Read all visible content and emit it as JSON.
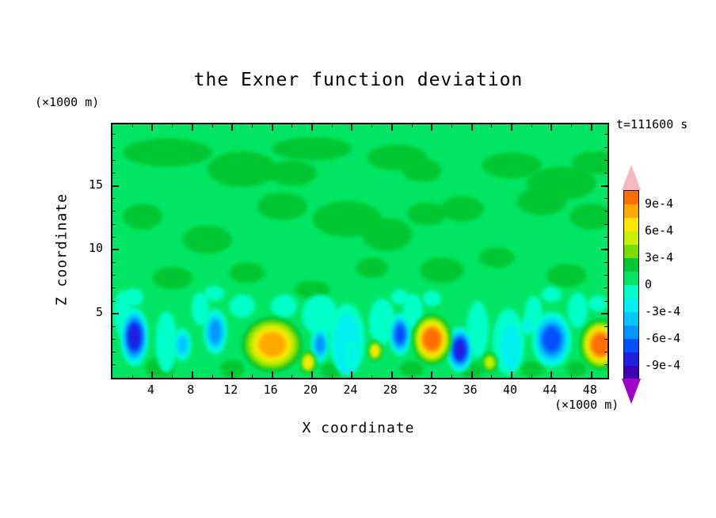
{
  "labels": {
    "title": "the Exner function deviation",
    "time": "t=111600 s",
    "y_unit": "(×1000 m)",
    "x_unit": "(×1000 m)",
    "xlabel": "X coordinate",
    "ylabel": "Z coordinate"
  },
  "chart_data": {
    "type": "filled_contour",
    "title": "the Exner function deviation",
    "xlabel": "X coordinate",
    "ylabel": "Z coordinate",
    "x_unit": "×1000 m",
    "y_unit": "×1000 m",
    "time_label": "t=111600 s",
    "x_range": [
      0,
      49.6
    ],
    "y_range": [
      0,
      19.8
    ],
    "x_ticks_major": [
      4,
      8,
      12,
      16,
      20,
      24,
      28,
      32,
      36,
      40,
      44,
      48
    ],
    "x_ticks_minor": [
      2,
      6,
      10,
      14,
      18,
      22,
      26,
      30,
      34,
      38,
      42,
      46
    ],
    "y_ticks_major": [
      5,
      10,
      15
    ],
    "y_ticks_minor": [
      1,
      2,
      3,
      4,
      6,
      7,
      8,
      9,
      11,
      12,
      13,
      14,
      16,
      17,
      18,
      19
    ],
    "contour_interval": 0.00015,
    "levels": [
      -0.0009,
      -0.00075,
      -0.0006,
      -0.00045,
      -0.0003,
      -0.00015,
      0,
      0.00015,
      0.0003,
      0.00045,
      0.0006,
      0.00075,
      0.0009
    ],
    "colorbar": {
      "cells": [
        "#3C00B4",
        "#2020E0",
        "#0050FF",
        "#0096FF",
        "#00C8FF",
        "#00F0F0",
        "#00FFC8",
        "#00E664",
        "#00C832",
        "#78DC00",
        "#C8F000",
        "#FFE600",
        "#FFAA00",
        "#FF6E00"
      ],
      "over_color": "#F5B8C3",
      "under_color": "#A000C8",
      "labels": [
        {
          "text": "9e-4",
          "boundary": 13
        },
        {
          "text": "6e-4",
          "boundary": 11
        },
        {
          "text": "3e-4",
          "boundary": 9
        },
        {
          "text": "0",
          "boundary": 7
        },
        {
          "text": "-3e-4",
          "boundary": 5
        },
        {
          "text": "-6e-4",
          "boundary": 3
        },
        {
          "text": "-9e-4",
          "boundary": 1
        }
      ]
    },
    "field": {
      "background_level": 7,
      "patches": [
        {
          "x": 5.5,
          "z": 17.6,
          "rx": 4.5,
          "rz": 1.1,
          "level": 8
        },
        {
          "x": 13.0,
          "z": 16.3,
          "rx": 3.5,
          "rz": 1.4,
          "level": 8
        },
        {
          "x": 18.0,
          "z": 16.0,
          "rx": 2.5,
          "rz": 1.0,
          "level": 8
        },
        {
          "x": 20.0,
          "z": 17.9,
          "rx": 4.0,
          "rz": 0.9,
          "level": 8
        },
        {
          "x": 28.5,
          "z": 17.2,
          "rx": 3.0,
          "rz": 1.0,
          "level": 8
        },
        {
          "x": 31.0,
          "z": 16.2,
          "rx": 2.0,
          "rz": 0.9,
          "level": 8
        },
        {
          "x": 40.0,
          "z": 16.6,
          "rx": 3.0,
          "rz": 1.0,
          "level": 8
        },
        {
          "x": 45.0,
          "z": 15.2,
          "rx": 3.5,
          "rz": 1.3,
          "level": 8
        },
        {
          "x": 48.5,
          "z": 16.8,
          "rx": 2.5,
          "rz": 0.9,
          "level": 8
        },
        {
          "x": 3.0,
          "z": 12.6,
          "rx": 2.0,
          "rz": 1.0,
          "level": 8
        },
        {
          "x": 9.5,
          "z": 10.8,
          "rx": 2.5,
          "rz": 1.1,
          "level": 8
        },
        {
          "x": 17.0,
          "z": 13.4,
          "rx": 2.5,
          "rz": 1.1,
          "level": 8
        },
        {
          "x": 23.5,
          "z": 12.4,
          "rx": 3.5,
          "rz": 1.4,
          "level": 8
        },
        {
          "x": 27.5,
          "z": 11.2,
          "rx": 2.5,
          "rz": 1.3,
          "level": 8
        },
        {
          "x": 31.5,
          "z": 12.8,
          "rx": 2.0,
          "rz": 0.9,
          "level": 8
        },
        {
          "x": 35.0,
          "z": 13.2,
          "rx": 2.2,
          "rz": 1.0,
          "level": 8
        },
        {
          "x": 43.0,
          "z": 13.8,
          "rx": 2.5,
          "rz": 1.1,
          "level": 8
        },
        {
          "x": 48.0,
          "z": 12.6,
          "rx": 2.2,
          "rz": 1.0,
          "level": 8
        },
        {
          "x": 6.0,
          "z": 7.8,
          "rx": 2.0,
          "rz": 0.9,
          "level": 8
        },
        {
          "x": 13.5,
          "z": 8.2,
          "rx": 1.8,
          "rz": 0.8,
          "level": 8
        },
        {
          "x": 20.0,
          "z": 6.9,
          "rx": 1.8,
          "rz": 0.7,
          "level": 8
        },
        {
          "x": 26.0,
          "z": 8.6,
          "rx": 1.6,
          "rz": 0.8,
          "level": 8
        },
        {
          "x": 33.0,
          "z": 8.4,
          "rx": 2.2,
          "rz": 1.0,
          "level": 8
        },
        {
          "x": 38.5,
          "z": 9.4,
          "rx": 1.8,
          "rz": 0.8,
          "level": 8
        },
        {
          "x": 45.5,
          "z": 8.0,
          "rx": 2.0,
          "rz": 0.9,
          "level": 8
        },
        {
          "x": 4.8,
          "z": 0.8,
          "rx": 1.5,
          "rz": 0.8,
          "level": 8
        },
        {
          "x": 12.0,
          "z": 0.7,
          "rx": 1.2,
          "rz": 0.7,
          "level": 8
        },
        {
          "x": 22.0,
          "z": 0.6,
          "rx": 1.2,
          "rz": 0.6,
          "level": 8
        },
        {
          "x": 30.0,
          "z": 0.7,
          "rx": 1.2,
          "rz": 0.6,
          "level": 8
        },
        {
          "x": 36.0,
          "z": 0.6,
          "rx": 1.2,
          "rz": 0.6,
          "level": 8
        },
        {
          "x": 42.0,
          "z": 0.7,
          "rx": 1.2,
          "rz": 0.6,
          "level": 8
        },
        {
          "x": 46.5,
          "z": 0.7,
          "rx": 1.0,
          "rz": 0.6,
          "level": 8
        },
        {
          "x": 1.0,
          "z": 5.0,
          "rx": 0.9,
          "rz": 1.8,
          "level": 6
        },
        {
          "x": 5.4,
          "z": 2.8,
          "rx": 1.1,
          "rz": 2.4,
          "level": 6
        },
        {
          "x": 8.8,
          "z": 5.4,
          "rx": 0.9,
          "rz": 1.3,
          "level": 6
        },
        {
          "x": 13.0,
          "z": 5.6,
          "rx": 1.3,
          "rz": 0.9,
          "level": 6
        },
        {
          "x": 17.2,
          "z": 5.6,
          "rx": 1.3,
          "rz": 0.9,
          "level": 6
        },
        {
          "x": 20.8,
          "z": 4.9,
          "rx": 1.8,
          "rz": 1.6,
          "level": 6
        },
        {
          "x": 23.5,
          "z": 3.0,
          "rx": 1.8,
          "rz": 2.8,
          "level": 6
        },
        {
          "x": 27.0,
          "z": 4.4,
          "rx": 1.3,
          "rz": 1.8,
          "level": 6
        },
        {
          "x": 30.1,
          "z": 5.2,
          "rx": 1.0,
          "rz": 1.4,
          "level": 6
        },
        {
          "x": 36.6,
          "z": 3.8,
          "rx": 1.1,
          "rz": 2.2,
          "level": 6
        },
        {
          "x": 39.7,
          "z": 2.8,
          "rx": 1.6,
          "rz": 2.6,
          "level": 6
        },
        {
          "x": 42.2,
          "z": 5.0,
          "rx": 0.9,
          "rz": 1.4,
          "level": 6
        },
        {
          "x": 46.6,
          "z": 5.3,
          "rx": 1.0,
          "rz": 1.4,
          "level": 6
        },
        {
          "x": 2.1,
          "z": 6.3,
          "rx": 1.0,
          "rz": 0.7,
          "level": 6
        },
        {
          "x": 10.2,
          "z": 6.6,
          "rx": 1.0,
          "rz": 0.6,
          "level": 6
        },
        {
          "x": 28.8,
          "z": 6.3,
          "rx": 0.9,
          "rz": 0.6,
          "level": 6
        },
        {
          "x": 32.0,
          "z": 6.2,
          "rx": 0.9,
          "rz": 0.6,
          "level": 6
        },
        {
          "x": 44.0,
          "z": 6.5,
          "rx": 1.0,
          "rz": 0.6,
          "level": 6
        },
        {
          "x": 48.6,
          "z": 5.8,
          "rx": 1.0,
          "rz": 0.6,
          "level": 6
        },
        {
          "x": 23.5,
          "z": 2.6,
          "rx": 1.3,
          "rz": 2.4,
          "level": 5
        },
        {
          "x": 39.9,
          "z": 2.4,
          "rx": 1.0,
          "rz": 1.8,
          "level": 5
        }
      ],
      "blobs": [
        {
          "x": 2.2,
          "z": 3.2,
          "rx": 1.4,
          "rz": 2.3,
          "peak": 1
        },
        {
          "x": 7.0,
          "z": 2.6,
          "rx": 0.9,
          "rz": 1.3,
          "peak": 4
        },
        {
          "x": 10.3,
          "z": 3.6,
          "rx": 1.2,
          "rz": 1.8,
          "peak": 3
        },
        {
          "x": 20.8,
          "z": 2.6,
          "rx": 0.9,
          "rz": 1.4,
          "peak": 3
        },
        {
          "x": 24.0,
          "z": 1.8,
          "rx": 0.7,
          "rz": 1.0,
          "peak": 5
        },
        {
          "x": 28.8,
          "z": 3.4,
          "rx": 1.1,
          "rz": 1.7,
          "peak": 2
        },
        {
          "x": 34.8,
          "z": 2.2,
          "rx": 1.3,
          "rz": 1.8,
          "peak": 1
        },
        {
          "x": 41.6,
          "z": 4.1,
          "rx": 0.6,
          "rz": 0.8,
          "peak": 5
        },
        {
          "x": 44.0,
          "z": 3.0,
          "rx": 2.0,
          "rz": 2.2,
          "peak": 2
        },
        {
          "x": 16.0,
          "z": 2.6,
          "rx": 3.1,
          "rz": 2.2,
          "peak": 12
        },
        {
          "x": 19.6,
          "z": 1.2,
          "rx": 0.8,
          "rz": 0.9,
          "peak": 11
        },
        {
          "x": 26.3,
          "z": 2.1,
          "rx": 0.7,
          "rz": 0.8,
          "peak": 11
        },
        {
          "x": 32.0,
          "z": 3.0,
          "rx": 2.0,
          "rz": 2.0,
          "peak": 13
        },
        {
          "x": 37.8,
          "z": 1.2,
          "rx": 0.8,
          "rz": 0.8,
          "peak": 10
        },
        {
          "x": 48.9,
          "z": 2.6,
          "rx": 2.1,
          "rz": 2.0,
          "peak": 13
        }
      ]
    }
  }
}
